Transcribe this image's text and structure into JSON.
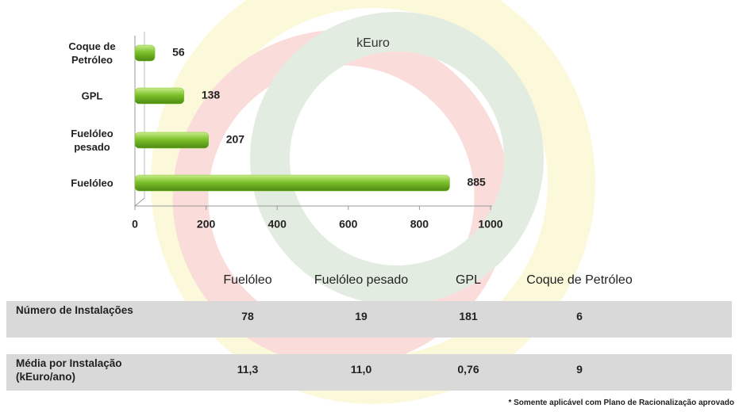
{
  "chart_data": {
    "type": "hbar",
    "subtitle": "kEuro",
    "categories": [
      "Coque de Petróleo",
      "GPL",
      "Fuelóleo pesado",
      "Fuelóleo"
    ],
    "values": [
      56,
      138,
      207,
      885
    ],
    "color": "#7cc12b",
    "xlim": [
      0,
      1000
    ],
    "xticks": [
      0,
      200,
      400,
      600,
      800,
      1000
    ]
  },
  "table": {
    "columns": [
      "Fuelóleo",
      "Fuelóleo pesado",
      "GPL",
      "Coque de Petróleo"
    ],
    "rows": [
      {
        "label": "Número de Instalações",
        "cells": [
          "78",
          "19",
          "181",
          "6"
        ]
      },
      {
        "label": "Média por Instalação (kEuro/ano)",
        "cells": [
          "11,3",
          "11,0",
          "0,76",
          "9"
        ]
      }
    ]
  },
  "footnote": "* Somente aplicável com Plano de Racionalização aprovado"
}
